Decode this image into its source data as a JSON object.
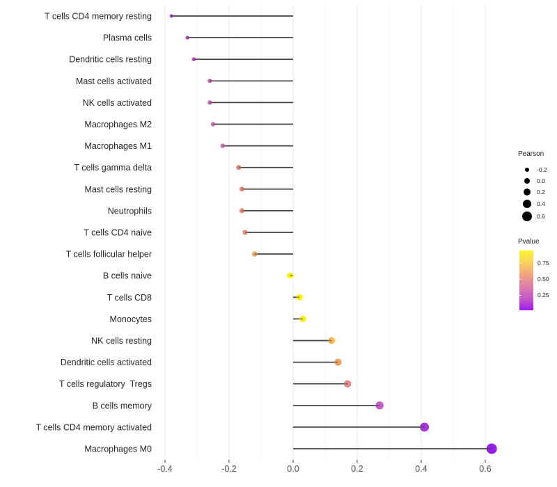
{
  "chart_data": {
    "type": "lollipop",
    "orientation": "horizontal",
    "title": "",
    "xlabel": "",
    "ylabel": "",
    "xlim": [
      -0.44,
      0.66
    ],
    "baseline": 0,
    "grid": true,
    "x_tick_labels": [
      "-0.4",
      "-0.2",
      "0.0",
      "0.2",
      "0.4",
      "0.6"
    ],
    "x_tick_values": [
      -0.4,
      -0.2,
      0.0,
      0.2,
      0.4,
      0.6
    ],
    "x_minor_values": [
      -0.3,
      -0.1,
      0.1,
      0.3,
      0.5
    ],
    "categories_note": "listed top to bottom; pearson = dot position and size, color encodes Pvalue",
    "points": [
      {
        "label": "T cells CD4 memory resting",
        "pearson": -0.38,
        "color": "#a23cb5"
      },
      {
        "label": "Plasma cells",
        "pearson": -0.33,
        "color": "#b04cc0"
      },
      {
        "label": "Dendritic cells resting",
        "pearson": -0.31,
        "color": "#b453be"
      },
      {
        "label": "Mast cells activated",
        "pearson": -0.26,
        "color": "#c263b8"
      },
      {
        "label": "NK cells activated",
        "pearson": -0.26,
        "color": "#c365b7"
      },
      {
        "label": "Macrophages M2",
        "pearson": -0.25,
        "color": "#c76bb4"
      },
      {
        "label": "Macrophages M1",
        "pearson": -0.22,
        "color": "#cc74ae"
      },
      {
        "label": "T cells gamma delta",
        "pearson": -0.17,
        "color": "#dc8a85"
      },
      {
        "label": "Mast cells resting",
        "pearson": -0.16,
        "color": "#df8d7c"
      },
      {
        "label": "Neutrophils",
        "pearson": -0.16,
        "color": "#e08e7a"
      },
      {
        "label": "T cells CD4 naive",
        "pearson": -0.15,
        "color": "#e19077"
      },
      {
        "label": "T cells follicular helper",
        "pearson": -0.12,
        "color": "#eda762"
      },
      {
        "label": "B cells naive",
        "pearson": -0.01,
        "color": "#fdf203"
      },
      {
        "label": "T cells CD8",
        "pearson": 0.02,
        "color": "#fdf104"
      },
      {
        "label": "Monocytes",
        "pearson": 0.03,
        "color": "#fbee0d"
      },
      {
        "label": "NK cells resting",
        "pearson": 0.12,
        "color": "#f3ba56"
      },
      {
        "label": "Dendritic cells activated",
        "pearson": 0.14,
        "color": "#eda463"
      },
      {
        "label": "T cells regulatory  Tregs",
        "pearson": 0.17,
        "color": "#e18a89"
      },
      {
        "label": "B cells memory",
        "pearson": 0.27,
        "color": "#c55ec5"
      },
      {
        "label": "T cells CD4 memory activated",
        "pearson": 0.41,
        "color": "#a537da"
      },
      {
        "label": "Macrophages M0",
        "pearson": 0.62,
        "color": "#931fe9"
      }
    ],
    "legend_size": {
      "title": "Pearson",
      "entries": [
        {
          "label": "-0.2",
          "value": -0.2
        },
        {
          "label": "0.0",
          "value": 0.0
        },
        {
          "label": "0.2",
          "value": 0.2
        },
        {
          "label": "0.4",
          "value": 0.4
        },
        {
          "label": "0.6",
          "value": 0.6
        }
      ]
    },
    "legend_color": {
      "title": "Pvalue",
      "tick_labels": [
        "0.75",
        "0.50",
        "0.25"
      ],
      "gradient_top_to_bottom": [
        "#fdf42d",
        "#fbd857",
        "#f5b274",
        "#e89294",
        "#d671b5",
        "#bf52cb",
        "#9c19f0"
      ]
    },
    "style": {
      "stick_color": "#3f3f3f",
      "grid_major_color": "#e7e7e7",
      "grid_minor_color": "#f3f3f3",
      "axis_tick_color": "#333333",
      "x_tick_text_color": "#4d4d4d",
      "y_label_text_color": "#262626",
      "legend_dot_color": "#000000",
      "size_scale": {
        "diameter_intercept": 8.8,
        "diameter_slope": 10
      }
    }
  }
}
